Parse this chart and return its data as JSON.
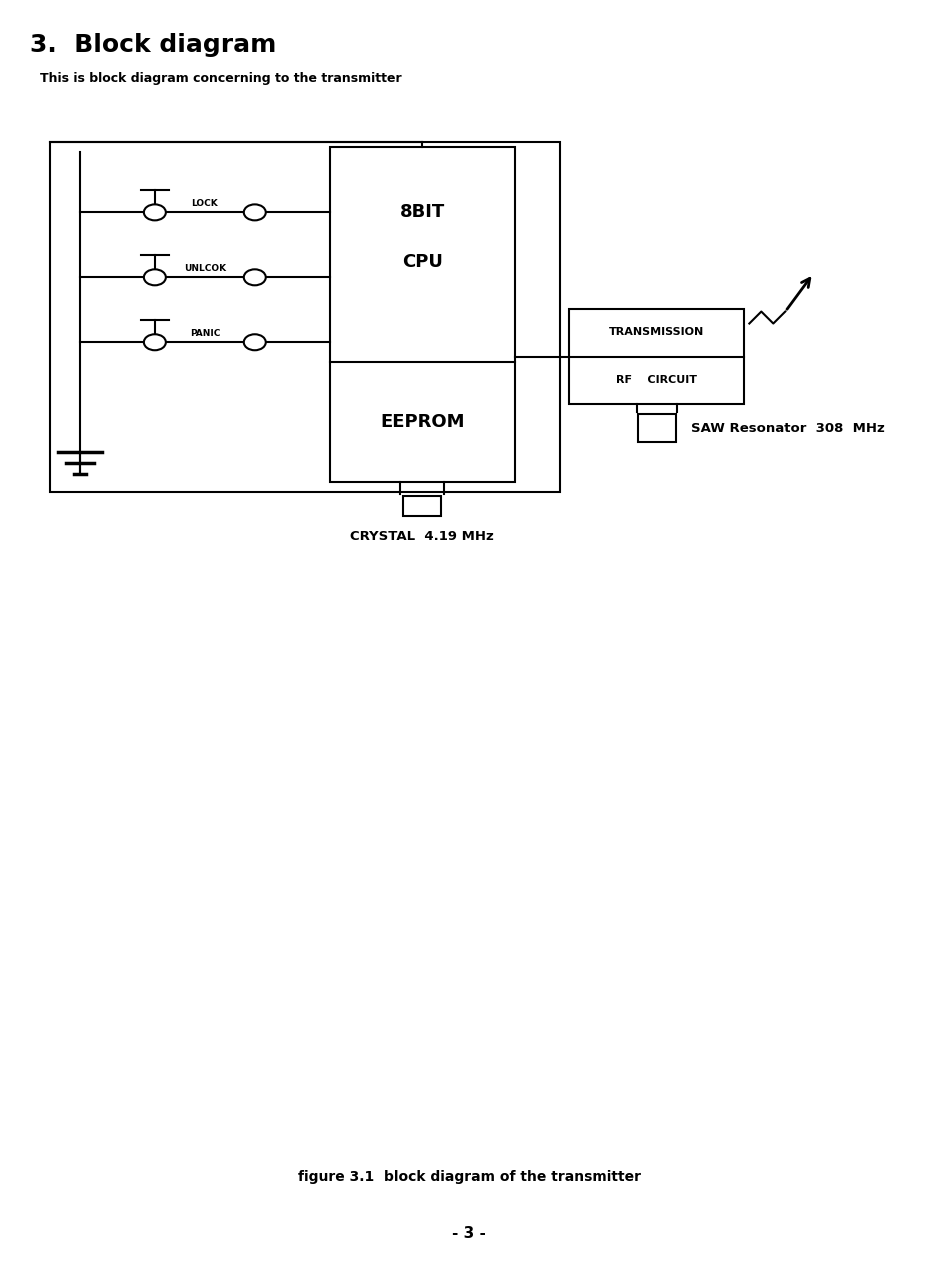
{
  "title": "3.  Block diagram",
  "subtitle": "This is block diagram concerning to the transmitter",
  "figure_caption": "figure 3.1  block diagram of the transmitter",
  "page_number": "- 3 -",
  "bg_color": "#ffffff",
  "text_color": "#000000",
  "crystal_label": "CRYSTAL  4.19 MHz",
  "saw_label": "SAW Resonator  308  MHz"
}
